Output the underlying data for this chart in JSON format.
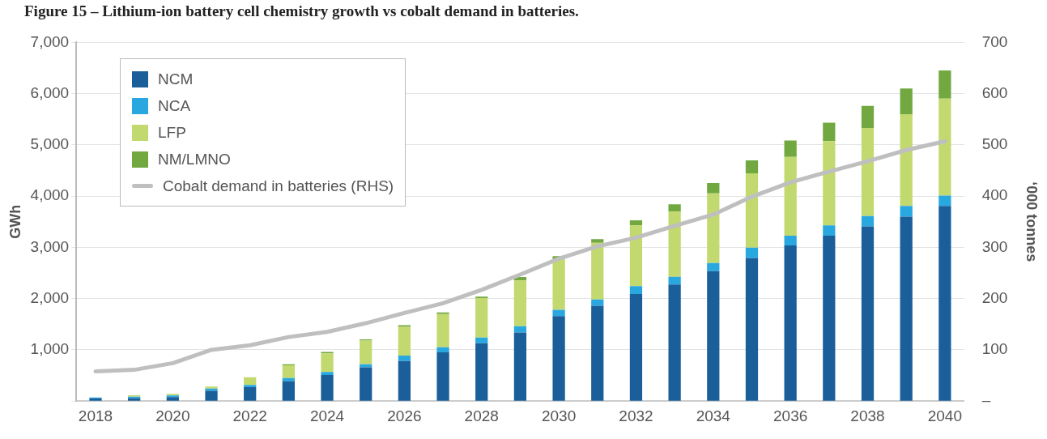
{
  "chart_data": {
    "type": "bar",
    "stacked": true,
    "title": "Figure 15 – Lithium-ion battery cell chemistry growth vs cobalt demand in batteries.",
    "ylabel": "GWh",
    "y2label": "‘000 tonnes",
    "categories": [
      "2018",
      null,
      "2020",
      null,
      "2022",
      null,
      "2024",
      null,
      "2026",
      null,
      "2028",
      null,
      "2030",
      null,
      "2032",
      null,
      "2034",
      null,
      "2036",
      null,
      "2038",
      null,
      "2040"
    ],
    "series": [
      {
        "name": "NCM",
        "color": "#1a5f9a",
        "values": [
          50,
          60,
          80,
          200,
          270,
          390,
          510,
          660,
          780,
          950,
          1130,
          1340,
          1660,
          1860,
          2090,
          2275,
          2535,
          2795,
          3040,
          3230,
          3410,
          3600,
          3810
        ]
      },
      {
        "name": "NCA",
        "color": "#29a8e0",
        "values": [
          20,
          25,
          30,
          45,
          45,
          60,
          60,
          60,
          110,
          100,
          110,
          120,
          120,
          125,
          155,
          150,
          160,
          200,
          190,
          200,
          200,
          210,
          200
        ]
      },
      {
        "name": "LFP",
        "color": "#c2d96f",
        "values": [
          null,
          30,
          30,
          40,
          150,
          250,
          360,
          460,
          560,
          650,
          770,
          895,
          985,
          1105,
          1185,
          1275,
          1360,
          1450,
          1535,
          1645,
          1720,
          1790,
          1895
        ]
      },
      {
        "name": "NM/LMNO",
        "color": "#72a840",
        "values": [
          0,
          0,
          0,
          null,
          0,
          20,
          30,
          25,
          30,
          30,
          30,
          65,
          65,
          70,
          100,
          140,
          200,
          255,
          320,
          360,
          430,
          500,
          550
        ]
      },
      {
        "name": "Cobalt demand in batteries (RHS)",
        "type": "line",
        "axis": "y2",
        "color": "#bfbfbf",
        "values": [
          58,
          61,
          74,
          100,
          109,
          125,
          135,
          152,
          172,
          191,
          217,
          247,
          278,
          302,
          319,
          342,
          364,
          399,
          427,
          448,
          468,
          490,
          507
        ]
      }
    ],
    "ylim": [
      0,
      7000
    ],
    "yticks": [
      {
        "value": 0,
        "label": null
      },
      {
        "value": 1000,
        "label": "1,000"
      },
      {
        "value": 2000,
        "label": "2,000"
      },
      {
        "value": 3000,
        "label": "3,000"
      },
      {
        "value": 4000,
        "label": "4,000"
      },
      {
        "value": 5000,
        "label": "5,000"
      },
      {
        "value": 6000,
        "label": "6,000"
      },
      {
        "value": 7000,
        "label": "7,000"
      }
    ],
    "y2lim": [
      0,
      700
    ],
    "y2ticks": [
      {
        "value": 0,
        "label": "–"
      },
      100,
      200,
      300,
      400,
      500,
      600,
      700
    ],
    "grid": "y",
    "legend": "top left",
    "marker": "none"
  }
}
